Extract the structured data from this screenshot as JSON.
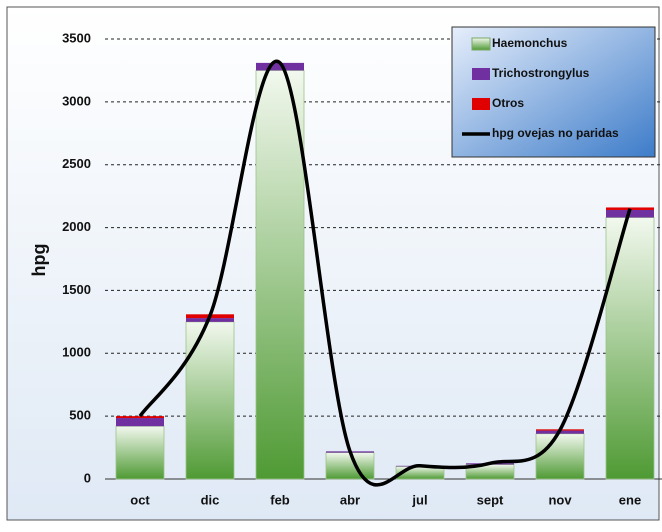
{
  "chart_data": {
    "type": "bar",
    "stacked": true,
    "ylabel": "hpg",
    "categories": [
      "oct",
      "dic",
      "feb",
      "abr",
      "jul",
      "sept",
      "nov",
      "ene"
    ],
    "series": [
      {
        "name": "Haemonchus",
        "color": "#4f9a34",
        "values": [
          420,
          1250,
          3250,
          210,
          100,
          115,
          360,
          2080
        ]
      },
      {
        "name": "Trichostrongylus",
        "color": "#7030a0",
        "values": [
          65,
          30,
          60,
          10,
          5,
          10,
          25,
          60
        ]
      },
      {
        "name": "Otros",
        "color": "#e00000",
        "values": [
          15,
          30,
          0,
          0,
          0,
          0,
          10,
          20
        ]
      },
      {
        "name": "hpg ovejas no paridas",
        "type": "line",
        "color": "#000000",
        "values": [
          500,
          1300,
          3310,
          220,
          105,
          125,
          390,
          2150
        ]
      }
    ],
    "ylim": [
      0,
      3500
    ],
    "yticks": [
      0,
      500,
      1000,
      1500,
      2000,
      2500,
      3000,
      3500
    ],
    "grid": true,
    "legend": "upper right"
  }
}
